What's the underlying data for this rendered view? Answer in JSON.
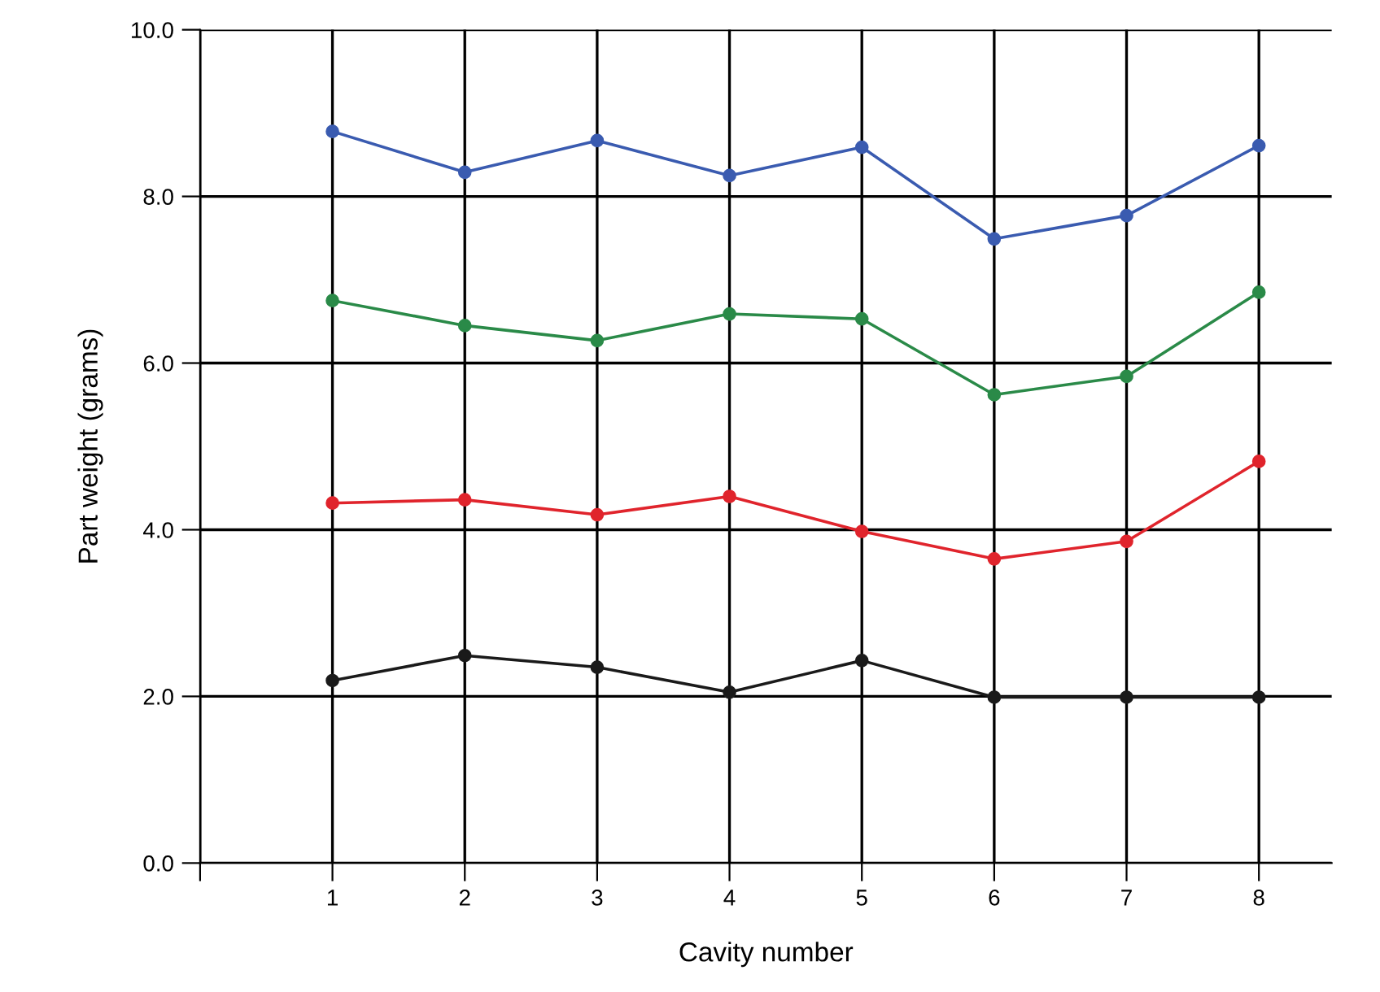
{
  "chart_data": {
    "type": "line",
    "xlabel": "Cavity number",
    "ylabel": "Part weight (grams)",
    "x": [
      1,
      2,
      3,
      4,
      5,
      6,
      7,
      8
    ],
    "series": [
      {
        "color": "#3a5bb0",
        "values": [
          8.78,
          8.29,
          8.67,
          8.25,
          8.59,
          7.49,
          7.77,
          8.61
        ]
      },
      {
        "color": "#2a8a48",
        "values": [
          6.75,
          6.45,
          6.27,
          6.59,
          6.53,
          5.62,
          5.84,
          6.85
        ]
      },
      {
        "color": "#e0242c",
        "values": [
          4.32,
          4.36,
          4.18,
          4.4,
          3.98,
          3.65,
          3.86,
          4.82
        ]
      },
      {
        "color": "#1a1a1a",
        "values": [
          2.19,
          2.49,
          2.35,
          2.05,
          2.43,
          1.99,
          1.99,
          1.99
        ]
      }
    ],
    "xlim": [
      0,
      8.55
    ],
    "xticks": [
      {
        "value": 0,
        "label": null
      },
      1,
      2,
      3,
      4,
      5,
      6,
      7,
      8
    ],
    "ylim": [
      0,
      10
    ],
    "yticks": [
      {
        "value": 0,
        "label": "0.0"
      },
      {
        "value": 2,
        "label": "2.0"
      },
      {
        "value": 4,
        "label": "4.0"
      },
      {
        "value": 6,
        "label": "6.0"
      },
      {
        "value": 8,
        "label": "8.0"
      },
      {
        "value": 10,
        "label": "10.0"
      }
    ],
    "grid": true,
    "marker": "circle",
    "line_style": "solid"
  }
}
